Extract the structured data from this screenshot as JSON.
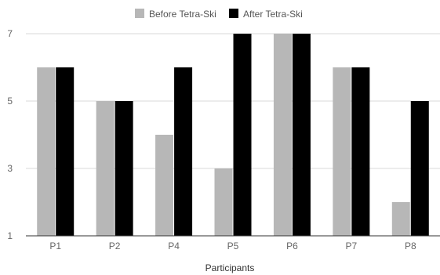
{
  "chart_data": {
    "type": "bar",
    "categories": [
      "P1",
      "P2",
      "P4",
      "P5",
      "P6",
      "P7",
      "P8"
    ],
    "series": [
      {
        "name": "Before Tetra-Ski",
        "color": "#b7b7b7",
        "values": [
          6,
          5,
          4,
          3,
          7,
          6,
          2
        ]
      },
      {
        "name": "After Tetra-Ski",
        "color": "#000000",
        "values": [
          6,
          5,
          6,
          7,
          7,
          6,
          5
        ]
      }
    ],
    "title": "",
    "xlabel": "Participants",
    "ylabel": "",
    "ylim": [
      1,
      7
    ],
    "yticks": [
      1,
      3,
      5,
      7
    ],
    "grid": true,
    "legend_position": "top-center"
  }
}
